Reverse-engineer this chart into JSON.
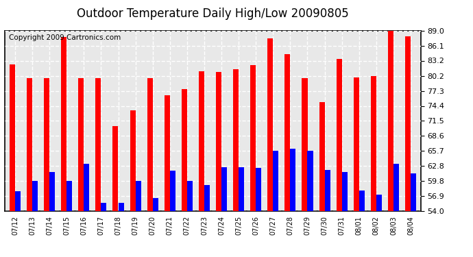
{
  "title": "Outdoor Temperature Daily High/Low 20090805",
  "copyright": "Copyright 2009 Cartronics.com",
  "dates": [
    "07/12",
    "07/13",
    "07/14",
    "07/15",
    "07/16",
    "07/17",
    "07/18",
    "07/19",
    "07/20",
    "07/21",
    "07/22",
    "07/23",
    "07/24",
    "07/25",
    "07/26",
    "07/27",
    "07/28",
    "07/29",
    "07/30",
    "07/31",
    "08/01",
    "08/02",
    "08/03",
    "08/04"
  ],
  "highs": [
    82.5,
    79.8,
    79.8,
    87.8,
    79.8,
    79.8,
    70.5,
    73.5,
    79.8,
    76.5,
    77.7,
    81.2,
    81.0,
    81.5,
    82.3,
    87.5,
    84.5,
    79.8,
    75.2,
    83.5,
    80.0,
    80.2,
    89.3,
    88.0
  ],
  "lows": [
    57.8,
    59.8,
    61.5,
    59.8,
    63.2,
    55.5,
    55.5,
    59.8,
    56.5,
    61.8,
    59.8,
    59.0,
    62.5,
    62.5,
    62.3,
    65.7,
    66.1,
    65.7,
    62.0,
    61.5,
    58.0,
    57.2,
    63.2,
    61.3
  ],
  "high_color": "#ff0000",
  "low_color": "#0000ff",
  "bar_width": 0.32,
  "ylim": [
    54.0,
    89.0
  ],
  "yticks": [
    54.0,
    56.9,
    59.8,
    62.8,
    65.7,
    68.6,
    71.5,
    74.4,
    77.3,
    80.2,
    83.2,
    86.1,
    89.0
  ],
  "bg_color": "#ffffff",
  "plot_bg_color": "#e8e8e8",
  "grid_color": "#ffffff",
  "title_fontsize": 12,
  "copyright_fontsize": 7.5
}
